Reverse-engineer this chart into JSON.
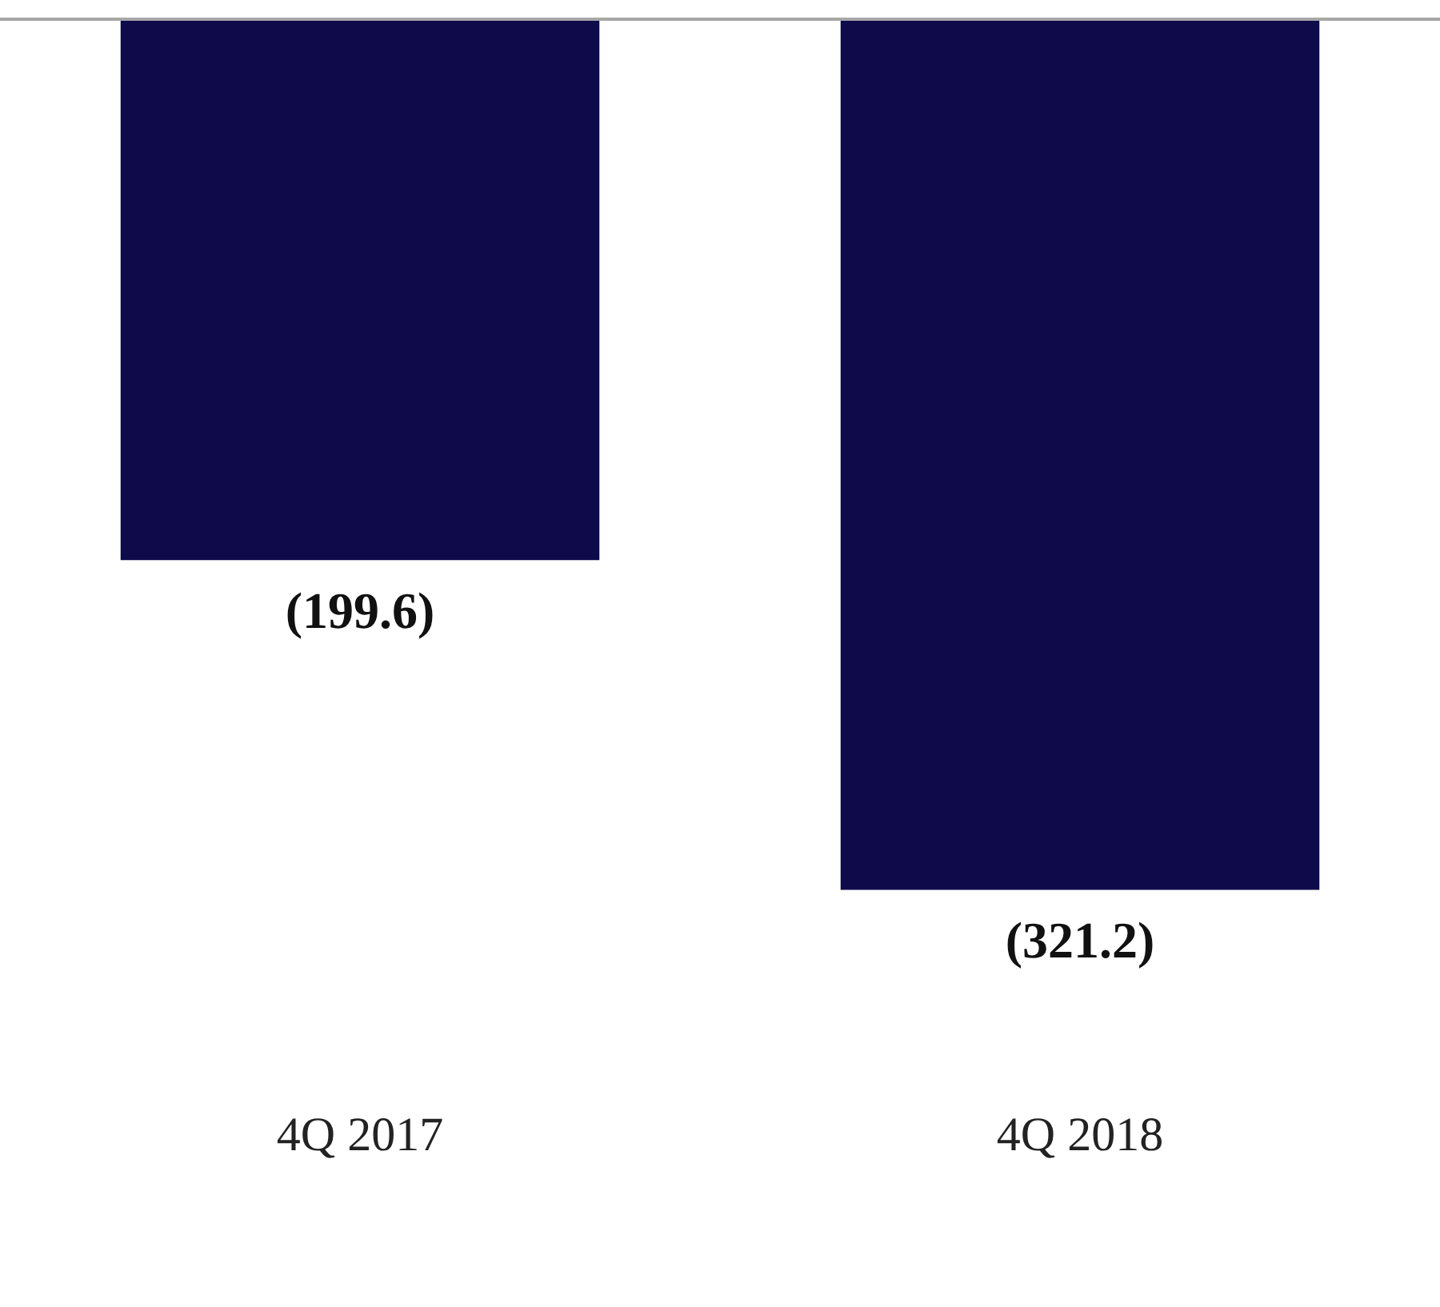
{
  "chart_data": {
    "type": "bar",
    "categories": [
      "4Q 2017",
      "4Q 2018"
    ],
    "values": [
      -199.6,
      -321.2
    ],
    "color": "#0f0a4a",
    "value_labels": [
      "(199.6)",
      "(321.2)"
    ],
    "grid": false,
    "legend": false
  }
}
